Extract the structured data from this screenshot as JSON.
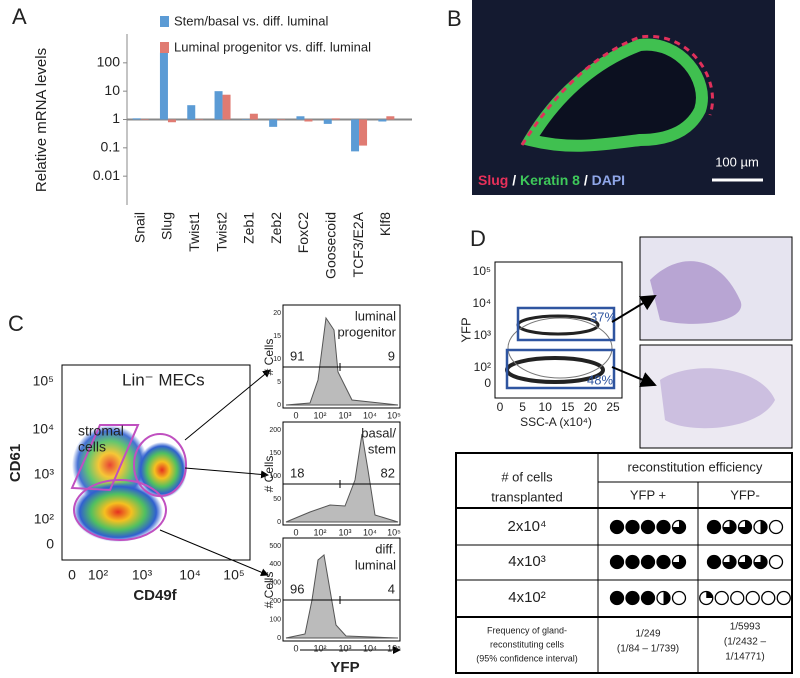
{
  "panel_labels": [
    "A",
    "B",
    "C",
    "D"
  ],
  "chart_data": {
    "type": "bar",
    "y_label": "Relative mRNA levels",
    "categories": [
      "Snail",
      "Slug",
      "Twist1",
      "Twist2",
      "Zeb1",
      "Zeb2",
      "FoxC2",
      "Goosecoid",
      "TCF3/E2A",
      "Klf8"
    ],
    "series": [
      {
        "name": "Stem/basal vs. diff. luminal",
        "color": "#5b9bd5",
        "values": [
          1.1,
          230,
          3.2,
          10,
          1,
          0.55,
          1.3,
          0.7,
          0.075,
          0.85
        ]
      },
      {
        "name": "Luminal progenitor vs. diff. luminal",
        "color": "#e07b72",
        "values": [
          1,
          0.8,
          1,
          7.5,
          1.6,
          1,
          0.85,
          1.1,
          0.12,
          1.3
        ]
      }
    ],
    "ylim": [
      0.001,
      1000
    ],
    "yticks": [
      100,
      10,
      1,
      0.1,
      0.01
    ],
    "log_scale": true,
    "x_axis_at": 1
  },
  "micrograph": {
    "stains": [
      {
        "text": "Slug",
        "color": "#e8305a"
      },
      {
        "text": "Keratin 8",
        "color": "#3ec85a"
      },
      {
        "text": "DAPI",
        "color": "#8fa6e8"
      }
    ],
    "separator": " / ",
    "scale_bar": "100 µm"
  },
  "flow_c": {
    "title": "Lin⁻ MECs",
    "annotation": [
      "stromal",
      "cells"
    ],
    "x_label": "CD49f",
    "y_label": "CD61",
    "xticks": [
      "0",
      "10²",
      "10³",
      "10⁴",
      "10⁵"
    ],
    "yticks": [
      "10⁵",
      "10⁴",
      "10³",
      "10²",
      "0"
    ]
  },
  "histograms": {
    "y_label": "# Cells",
    "x_label": "YFP",
    "xticks": [
      "0",
      "10²",
      "10³",
      "10⁴",
      "10⁵"
    ],
    "panels": [
      {
        "label": [
          "luminal",
          "progenitor"
        ],
        "left": 91,
        "right": 9,
        "yticks": [
          20,
          15,
          10,
          5,
          0
        ]
      },
      {
        "label": [
          "basal/",
          "stem"
        ],
        "left": 18,
        "right": 82,
        "yticks": [
          200,
          150,
          100,
          50,
          0
        ]
      },
      {
        "label": [
          "diff.",
          "luminal"
        ],
        "left": 96,
        "right": 4,
        "yticks": [
          500,
          400,
          300,
          200,
          100,
          0
        ]
      }
    ]
  },
  "flow_d": {
    "y_label": "YFP",
    "x_label": "SSC-A (x10⁴)",
    "xticks": [
      0,
      5,
      10,
      15,
      20,
      25
    ],
    "yticks": [
      "10⁵",
      "10⁴",
      "10³",
      "10²",
      "0"
    ],
    "gates": [
      "37%",
      "48%"
    ]
  },
  "table": {
    "cells_header": [
      "# of cells",
      "transplanted"
    ],
    "group_header": "reconstitution efficiency",
    "columns": [
      "YFP +",
      "YFP-"
    ],
    "rows": [
      {
        "label": "2x10⁴",
        "yfp_pos": [
          1,
          1,
          1,
          1,
          0.75
        ],
        "yfp_neg": [
          1,
          0.75,
          0.75,
          0.5,
          0
        ]
      },
      {
        "label": "4x10³",
        "yfp_pos": [
          1,
          1,
          1,
          1,
          0.75
        ],
        "yfp_neg": [
          1,
          0.75,
          0.75,
          0.75,
          0
        ]
      },
      {
        "label": "4x10²",
        "yfp_pos": [
          1,
          1,
          1,
          0.5,
          0
        ],
        "yfp_neg": [
          0.25,
          0,
          0,
          0,
          0,
          0
        ]
      }
    ],
    "frequency_label": [
      "Frequency of gland-",
      "reconstituting cells",
      "(95% confidence interval)"
    ],
    "frequency_pos": [
      "1/249",
      "(1/84 – 1/739)"
    ],
    "frequency_neg": [
      "1/5993",
      "(1/2432 –",
      "1/14771)"
    ]
  }
}
